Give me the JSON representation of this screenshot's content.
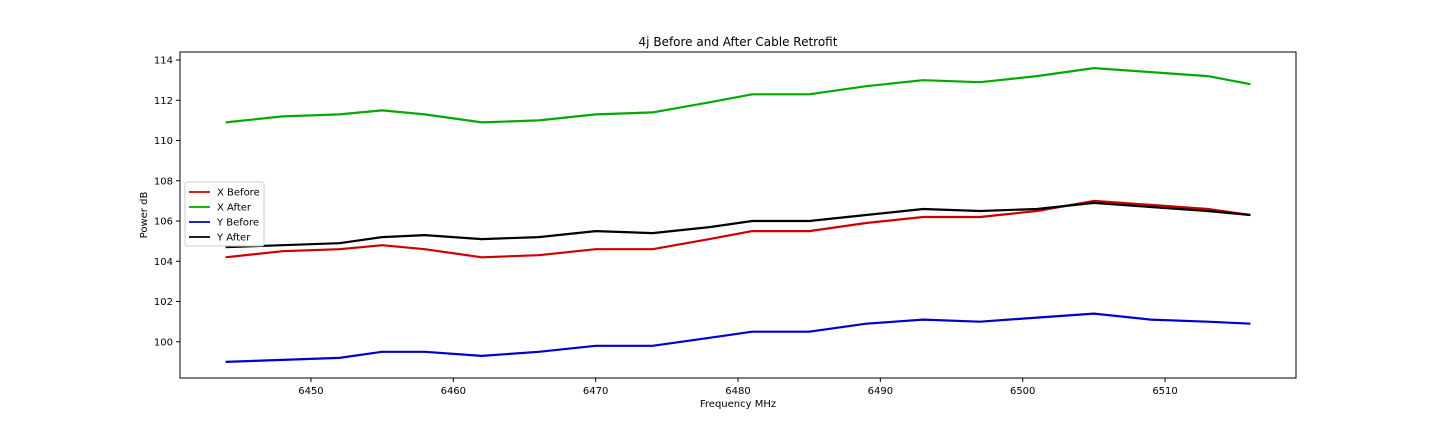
{
  "chart_data": {
    "type": "line",
    "title": "4j Before and After Cable Retrofit",
    "xlabel": "Frequency MHz",
    "ylabel": "Power dB",
    "xlim": [
      6440.8,
      6519.2
    ],
    "ylim": [
      98.2,
      114.4
    ],
    "xticks": [
      6450,
      6460,
      6470,
      6480,
      6490,
      6500,
      6510
    ],
    "yticks": [
      100,
      102,
      104,
      106,
      108,
      110,
      112,
      114
    ],
    "grid": false,
    "legend_position": "center-left",
    "x": [
      6444,
      6448,
      6452,
      6455,
      6458,
      6462,
      6466,
      6470,
      6474,
      6478,
      6481,
      6485,
      6489,
      6493,
      6497,
      6501,
      6505,
      6509,
      6513,
      6516
    ],
    "series": [
      {
        "name": "X Before",
        "color": "#cc0000",
        "values": [
          104.2,
          104.5,
          104.6,
          104.8,
          104.6,
          104.2,
          104.3,
          104.6,
          104.6,
          105.1,
          105.5,
          105.5,
          105.9,
          106.2,
          106.2,
          106.5,
          107.0,
          106.8,
          106.6,
          106.3
        ]
      },
      {
        "name": "X After",
        "color": "#00aa00",
        "values": [
          110.9,
          111.2,
          111.3,
          111.5,
          111.3,
          110.9,
          111.0,
          111.3,
          111.4,
          111.9,
          112.3,
          112.3,
          112.7,
          113.0,
          112.9,
          113.2,
          113.6,
          113.4,
          113.2,
          112.8
        ]
      },
      {
        "name": "Y Before",
        "color": "#0000cc",
        "values": [
          99.0,
          99.1,
          99.2,
          99.5,
          99.5,
          99.3,
          99.5,
          99.8,
          99.8,
          100.2,
          100.5,
          100.5,
          100.9,
          101.1,
          101.0,
          101.2,
          101.4,
          101.1,
          101.0,
          100.9
        ]
      },
      {
        "name": "Y After",
        "color": "#000000",
        "values": [
          104.7,
          104.8,
          104.9,
          105.2,
          105.3,
          105.1,
          105.2,
          105.5,
          105.4,
          105.7,
          106.0,
          106.0,
          106.3,
          106.6,
          106.5,
          106.6,
          106.9,
          106.7,
          106.5,
          106.3
        ]
      }
    ]
  }
}
